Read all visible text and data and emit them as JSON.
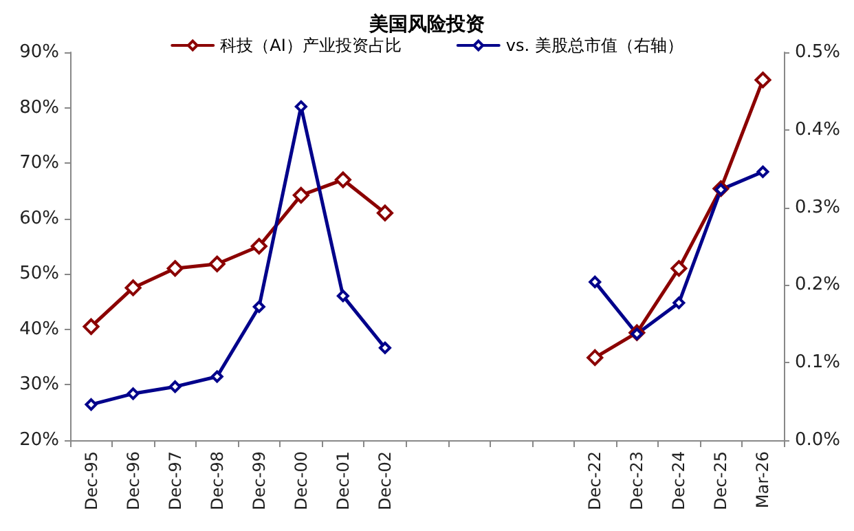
{
  "chart_data": {
    "type": "line",
    "title": "美国风险投资",
    "categories": [
      "Dec-95",
      "Dec-96",
      "Dec-97",
      "Dec-98",
      "Dec-99",
      "Dec-00",
      "Dec-01",
      "Dec-02",
      null,
      null,
      null,
      null,
      "Dec-22",
      "Dec-23",
      "Dec-24",
      "Dec-25",
      "Mar-26"
    ],
    "series": [
      {
        "name": "科技（AI）产业投资占比",
        "color": "#8b0000",
        "values": [
          40.5,
          47.5,
          51,
          51.8,
          55,
          64.2,
          67,
          61,
          null,
          null,
          null,
          null,
          34.9,
          39.4,
          51,
          65.4,
          85
        ]
      },
      {
        "name": "vs. 美股总市值（右轴）",
        "color": "#00008b",
        "axis": "y2",
        "values": [
          0.046,
          0.06,
          0.069,
          0.082,
          0.172,
          0.43,
          0.186,
          0.119,
          null,
          null,
          null,
          null,
          0.204,
          0.137,
          0.177,
          0.323,
          0.346
        ]
      }
    ],
    "ylim": [
      20,
      90
    ],
    "yticks": [
      {
        "value": 20,
        "label": "20%"
      },
      {
        "value": 30,
        "label": "30%"
      },
      {
        "value": 40,
        "label": "40%"
      },
      {
        "value": 50,
        "label": "50%"
      },
      {
        "value": 60,
        "label": "60%"
      },
      {
        "value": 70,
        "label": "70%"
      },
      {
        "value": 80,
        "label": "80%"
      },
      {
        "value": 90,
        "label": "90%"
      }
    ],
    "y2lim": [
      0,
      0.5
    ],
    "y2ticks": [
      {
        "value": 0,
        "label": "0.0%"
      },
      {
        "value": 0.1,
        "label": "0.1%"
      },
      {
        "value": 0.2,
        "label": "0.2%"
      },
      {
        "value": 0.3,
        "label": "0.3%"
      },
      {
        "value": 0.4,
        "label": "0.4%"
      },
      {
        "value": 0.5,
        "label": "0.5%"
      }
    ],
    "legend": "top",
    "marker": "diamond",
    "line_style": "solid",
    "grid": false
  }
}
